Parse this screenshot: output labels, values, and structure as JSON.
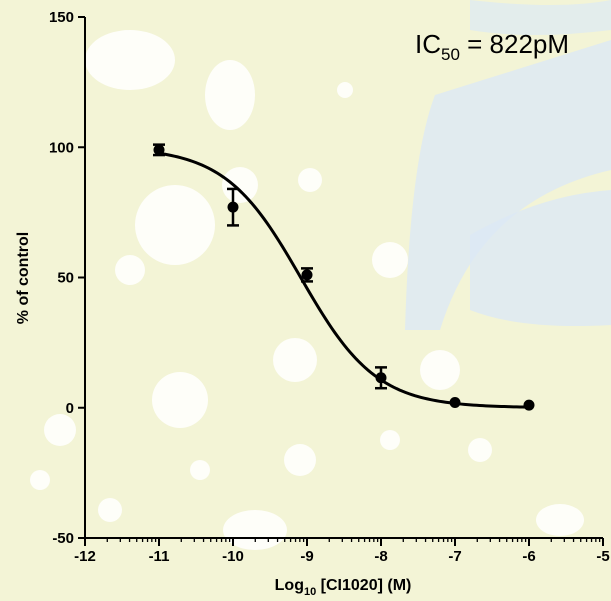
{
  "chart_data": {
    "type": "scatter",
    "title": "",
    "xlabel": "Log",
    "xlabel_sub": "10",
    "xlabel_rest": " [CI1020] (M)",
    "ylabel": "% of control",
    "xlim": [
      -12,
      -5
    ],
    "ylim": [
      -50,
      150
    ],
    "xticks": [
      -12,
      -11,
      -10,
      -9,
      -8,
      -7,
      -6,
      -5
    ],
    "yticks": [
      -50,
      0,
      50,
      100,
      150
    ],
    "grid": false,
    "legend": "none",
    "annotation": {
      "prefix": "IC",
      "sub": "50",
      "rest": " = 822pM"
    },
    "points": [
      {
        "x": -11,
        "y": 99,
        "err": 2
      },
      {
        "x": -10,
        "y": 77,
        "err": 7
      },
      {
        "x": -9,
        "y": 51,
        "err": 2.5
      },
      {
        "x": -8,
        "y": 11.5,
        "err": 4
      },
      {
        "x": -7,
        "y": 2,
        "err": 0
      },
      {
        "x": -6,
        "y": 1,
        "err": 0
      }
    ],
    "fit": {
      "type": "4PL",
      "top": 100,
      "bottom": 0,
      "logIC50": -9.085,
      "hill": 0.85,
      "x_range": [
        -11,
        -6
      ]
    },
    "colors": {
      "marker": "#000000",
      "line": "#000000",
      "background": "#f3f4d6",
      "blob": "#ffffff",
      "stripe": "#dce9f5"
    }
  }
}
